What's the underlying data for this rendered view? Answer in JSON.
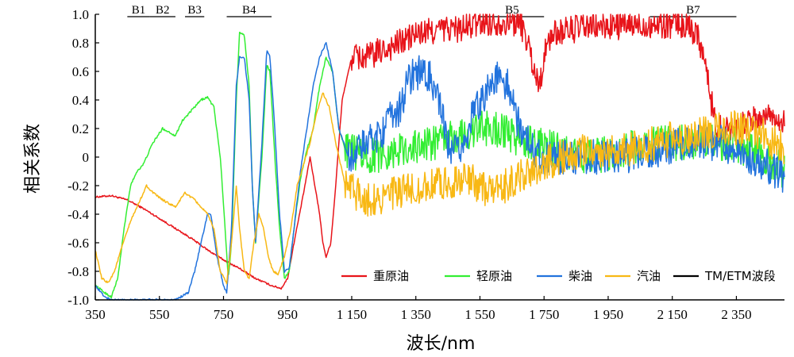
{
  "chart_data": {
    "type": "line",
    "xlabel": "波长/nm",
    "ylabel": "相关系数",
    "xlim": [
      350,
      2500
    ],
    "ylim": [
      -1.0,
      1.0
    ],
    "x_ticks": [
      350,
      550,
      750,
      950,
      1150,
      1350,
      1550,
      1750,
      1950,
      2150,
      2350
    ],
    "x_tick_labels": [
      "350",
      "550",
      "750",
      "950",
      "1 150",
      "1 350",
      "1 550",
      "1 750",
      "1 950",
      "2 150",
      "2 350"
    ],
    "y_ticks": [
      -1.0,
      -0.8,
      -0.6,
      -0.4,
      -0.2,
      0,
      0.2,
      0.4,
      0.6,
      0.8,
      1.0
    ],
    "y_tick_labels": [
      "-1.0",
      "-0.8",
      "-0.6",
      "-0.4",
      "-0.2",
      "0",
      "0.2",
      "0.4",
      "0.6",
      "0.8",
      "1.0"
    ],
    "grid": false,
    "legend_position": "bottom-right",
    "bands": [
      {
        "label": "B1",
        "range": [
          450,
          520
        ]
      },
      {
        "label": "B2",
        "range": [
          520,
          600
        ]
      },
      {
        "label": "B3",
        "range": [
          630,
          690
        ]
      },
      {
        "label": "B4",
        "range": [
          760,
          900
        ]
      },
      {
        "label": "B5",
        "range": [
          1550,
          1750
        ]
      },
      {
        "label": "B7",
        "range": [
          2080,
          2350
        ]
      }
    ],
    "series": [
      {
        "name": "重原油",
        "color": "#e8141a",
        "noise": 0.02,
        "noise_start": 1150,
        "points": [
          [
            350,
            -0.28
          ],
          [
            400,
            -0.27
          ],
          [
            450,
            -0.3
          ],
          [
            500,
            -0.36
          ],
          [
            550,
            -0.43
          ],
          [
            600,
            -0.5
          ],
          [
            650,
            -0.57
          ],
          [
            700,
            -0.65
          ],
          [
            750,
            -0.72
          ],
          [
            800,
            -0.78
          ],
          [
            850,
            -0.85
          ],
          [
            900,
            -0.9
          ],
          [
            930,
            -0.92
          ],
          [
            950,
            -0.85
          ],
          [
            970,
            -0.6
          ],
          [
            1000,
            -0.25
          ],
          [
            1020,
            0.0
          ],
          [
            1035,
            -0.2
          ],
          [
            1050,
            -0.4
          ],
          [
            1060,
            -0.6
          ],
          [
            1070,
            -0.7
          ],
          [
            1085,
            -0.6
          ],
          [
            1100,
            -0.2
          ],
          [
            1120,
            0.4
          ],
          [
            1150,
            0.7
          ],
          [
            1200,
            0.7
          ],
          [
            1250,
            0.75
          ],
          [
            1300,
            0.8
          ],
          [
            1350,
            0.86
          ],
          [
            1400,
            0.88
          ],
          [
            1450,
            0.9
          ],
          [
            1500,
            0.9
          ],
          [
            1550,
            0.94
          ],
          [
            1600,
            0.95
          ],
          [
            1650,
            0.95
          ],
          [
            1680,
            0.92
          ],
          [
            1700,
            0.8
          ],
          [
            1720,
            0.6
          ],
          [
            1735,
            0.5
          ],
          [
            1750,
            0.7
          ],
          [
            1770,
            0.85
          ],
          [
            1800,
            0.88
          ],
          [
            1850,
            0.9
          ],
          [
            1900,
            0.91
          ],
          [
            2000,
            0.92
          ],
          [
            2100,
            0.93
          ],
          [
            2150,
            0.93
          ],
          [
            2200,
            0.92
          ],
          [
            2230,
            0.86
          ],
          [
            2250,
            0.7
          ],
          [
            2270,
            0.4
          ],
          [
            2290,
            0.2
          ],
          [
            2330,
            0.2
          ],
          [
            2400,
            0.25
          ],
          [
            2450,
            0.3
          ],
          [
            2500,
            0.25
          ]
        ]
      },
      {
        "name": "轻原油",
        "color": "#33ee33",
        "noise": 0.025,
        "noise_start": 1130,
        "points": [
          [
            350,
            -0.9
          ],
          [
            380,
            -0.95
          ],
          [
            400,
            -0.98
          ],
          [
            420,
            -0.85
          ],
          [
            440,
            -0.5
          ],
          [
            460,
            -0.2
          ],
          [
            480,
            -0.1
          ],
          [
            500,
            -0.05
          ],
          [
            530,
            0.1
          ],
          [
            560,
            0.2
          ],
          [
            600,
            0.15
          ],
          [
            620,
            0.25
          ],
          [
            640,
            0.3
          ],
          [
            660,
            0.35
          ],
          [
            680,
            0.4
          ],
          [
            700,
            0.42
          ],
          [
            720,
            0.35
          ],
          [
            740,
            0.0
          ],
          [
            755,
            -0.5
          ],
          [
            765,
            -0.85
          ],
          [
            775,
            -0.6
          ],
          [
            790,
            0.4
          ],
          [
            800,
            0.88
          ],
          [
            815,
            0.85
          ],
          [
            830,
            0.5
          ],
          [
            840,
            -0.2
          ],
          [
            850,
            -0.6
          ],
          [
            870,
            0.0
          ],
          [
            885,
            0.65
          ],
          [
            895,
            0.6
          ],
          [
            910,
            0.0
          ],
          [
            925,
            -0.5
          ],
          [
            940,
            -0.85
          ],
          [
            955,
            -0.8
          ],
          [
            970,
            -0.5
          ],
          [
            990,
            -0.15
          ],
          [
            1010,
            0.05
          ],
          [
            1030,
            0.2
          ],
          [
            1050,
            0.5
          ],
          [
            1070,
            0.7
          ],
          [
            1090,
            0.6
          ],
          [
            1110,
            0.2
          ],
          [
            1130,
            0.05
          ],
          [
            1200,
            0.0
          ],
          [
            1300,
            0.05
          ],
          [
            1400,
            0.1
          ],
          [
            1500,
            0.15
          ],
          [
            1550,
            0.2
          ],
          [
            1600,
            0.2
          ],
          [
            1650,
            0.15
          ],
          [
            1700,
            0.1
          ],
          [
            1800,
            0.05
          ],
          [
            1900,
            0.0
          ],
          [
            2000,
            0.05
          ],
          [
            2100,
            0.1
          ],
          [
            2200,
            0.1
          ],
          [
            2300,
            0.1
          ],
          [
            2400,
            0.05
          ],
          [
            2500,
            -0.1
          ]
        ]
      },
      {
        "name": "柴油",
        "color": "#2273dd",
        "noise": 0.025,
        "noise_start": 1140,
        "points": [
          [
            350,
            -0.9
          ],
          [
            380,
            -0.98
          ],
          [
            400,
            -1.0
          ],
          [
            500,
            -1.0
          ],
          [
            600,
            -1.0
          ],
          [
            640,
            -0.95
          ],
          [
            660,
            -0.8
          ],
          [
            680,
            -0.6
          ],
          [
            700,
            -0.4
          ],
          [
            710,
            -0.4
          ],
          [
            730,
            -0.7
          ],
          [
            750,
            -0.9
          ],
          [
            760,
            -0.95
          ],
          [
            775,
            -0.5
          ],
          [
            790,
            0.5
          ],
          [
            800,
            0.7
          ],
          [
            815,
            0.7
          ],
          [
            830,
            0.4
          ],
          [
            840,
            -0.2
          ],
          [
            850,
            -0.6
          ],
          [
            870,
            0.1
          ],
          [
            885,
            0.75
          ],
          [
            895,
            0.7
          ],
          [
            910,
            0.2
          ],
          [
            925,
            -0.4
          ],
          [
            940,
            -0.8
          ],
          [
            955,
            -0.78
          ],
          [
            970,
            -0.5
          ],
          [
            990,
            -0.1
          ],
          [
            1010,
            0.2
          ],
          [
            1030,
            0.5
          ],
          [
            1050,
            0.7
          ],
          [
            1070,
            0.8
          ],
          [
            1090,
            0.6
          ],
          [
            1110,
            0.2
          ],
          [
            1140,
            0.0
          ],
          [
            1200,
            0.1
          ],
          [
            1250,
            0.2
          ],
          [
            1300,
            0.35
          ],
          [
            1330,
            0.55
          ],
          [
            1350,
            0.6
          ],
          [
            1400,
            0.55
          ],
          [
            1430,
            0.3
          ],
          [
            1460,
            0.0
          ],
          [
            1500,
            0.1
          ],
          [
            1530,
            0.3
          ],
          [
            1550,
            0.4
          ],
          [
            1580,
            0.5
          ],
          [
            1600,
            0.55
          ],
          [
            1640,
            0.5
          ],
          [
            1660,
            0.3
          ],
          [
            1700,
            0.1
          ],
          [
            1750,
            0.0
          ],
          [
            1800,
            0.0
          ],
          [
            1900,
            0.0
          ],
          [
            2000,
            0.0
          ],
          [
            2100,
            0.05
          ],
          [
            2200,
            0.1
          ],
          [
            2300,
            0.1
          ],
          [
            2400,
            0.0
          ],
          [
            2500,
            -0.15
          ]
        ]
      },
      {
        "name": "汽油",
        "color": "#f8b814",
        "noise": 0.025,
        "noise_start": 1130,
        "points": [
          [
            350,
            -0.65
          ],
          [
            370,
            -0.85
          ],
          [
            390,
            -0.88
          ],
          [
            410,
            -0.8
          ],
          [
            430,
            -0.65
          ],
          [
            460,
            -0.45
          ],
          [
            490,
            -0.3
          ],
          [
            510,
            -0.2
          ],
          [
            530,
            -0.25
          ],
          [
            560,
            -0.3
          ],
          [
            600,
            -0.35
          ],
          [
            630,
            -0.25
          ],
          [
            660,
            -0.3
          ],
          [
            700,
            -0.4
          ],
          [
            720,
            -0.5
          ],
          [
            740,
            -0.8
          ],
          [
            760,
            -0.88
          ],
          [
            775,
            -0.6
          ],
          [
            790,
            -0.2
          ],
          [
            800,
            -0.5
          ],
          [
            815,
            -0.8
          ],
          [
            830,
            -0.85
          ],
          [
            845,
            -0.6
          ],
          [
            860,
            -0.4
          ],
          [
            875,
            -0.5
          ],
          [
            890,
            -0.7
          ],
          [
            905,
            -0.8
          ],
          [
            920,
            -0.82
          ],
          [
            940,
            -0.7
          ],
          [
            960,
            -0.5
          ],
          [
            980,
            -0.2
          ],
          [
            1000,
            -0.05
          ],
          [
            1020,
            0.1
          ],
          [
            1040,
            0.3
          ],
          [
            1060,
            0.45
          ],
          [
            1080,
            0.35
          ],
          [
            1100,
            0.1
          ],
          [
            1130,
            -0.2
          ],
          [
            1200,
            -0.3
          ],
          [
            1300,
            -0.25
          ],
          [
            1400,
            -0.2
          ],
          [
            1500,
            -0.15
          ],
          [
            1600,
            -0.25
          ],
          [
            1700,
            -0.1
          ],
          [
            1800,
            0.0
          ],
          [
            1900,
            0.05
          ],
          [
            2000,
            0.05
          ],
          [
            2100,
            0.1
          ],
          [
            2200,
            0.15
          ],
          [
            2300,
            0.2
          ],
          [
            2400,
            0.2
          ],
          [
            2500,
            0.05
          ]
        ]
      }
    ],
    "legend_extra": {
      "name": "TM/ETM波段",
      "color": "#000000"
    }
  }
}
